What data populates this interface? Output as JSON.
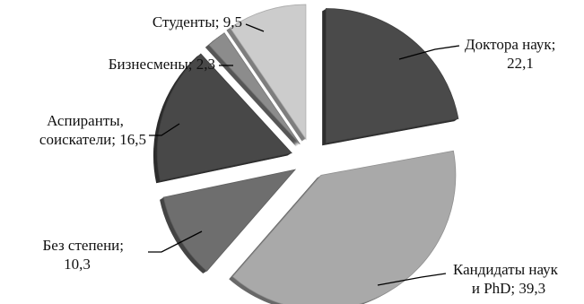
{
  "chart_data": {
    "type": "pie",
    "title": "",
    "unit": "%",
    "exploded": true,
    "style": "3d",
    "slices": [
      {
        "name": "Доктора наук",
        "value": 22.1,
        "label": [
          "Доктора наук;",
          "22,1"
        ],
        "color": "#4a4a4a"
      },
      {
        "name": "Кандидаты наук и PhD",
        "value": 39.3,
        "label": [
          "Кандидаты наук",
          "и PhD; 39,3"
        ],
        "color": "#a9a9a9"
      },
      {
        "name": "Без степени",
        "value": 10.3,
        "label": [
          "Без степени;",
          "10,3"
        ],
        "color": "#6e6e6e"
      },
      {
        "name": "Аспиранты, соискатели",
        "value": 16.5,
        "label": [
          "Аспиранты,",
          "соискатели; 16,5"
        ],
        "color": "#484848"
      },
      {
        "name": "Бизнесмены",
        "value": 2.3,
        "label": [
          "Бизнесмены; 2,3"
        ],
        "color": "#8c8c8c"
      },
      {
        "name": "Студенты",
        "value": 9.5,
        "label": [
          "Студенты; 9,5"
        ],
        "color": "#cccccc"
      }
    ]
  }
}
